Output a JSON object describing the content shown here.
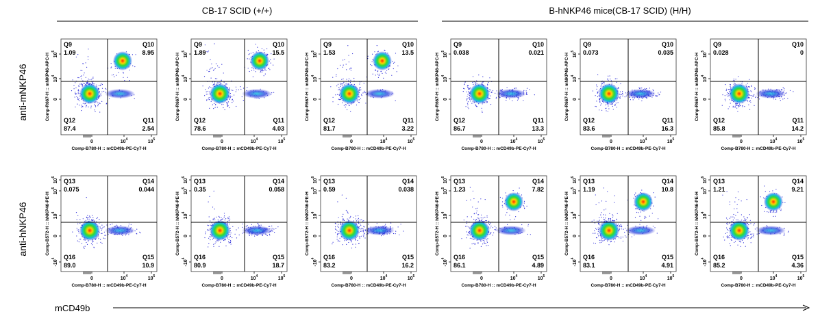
{
  "group_titles": [
    "CB-17 SCID (+/+)",
    "B-hNKP46 mice(CB-17 SCID) (H/H)"
  ],
  "row_labels": [
    "anti-mNKP46",
    "anti-hNKP46"
  ],
  "bottom_axis_label": "mCD49b",
  "chart_data": {
    "type": "scatter",
    "description_kind": "flow-cytometry quadrant plots",
    "x_axis": {
      "label": "Comp-B780-H :: mCD49b-PE-Cy7-H",
      "ticks": [
        "0",
        "10^4",
        "10^5"
      ],
      "scale": "biexponential"
    },
    "rows": [
      {
        "row_label": "anti-mNKP46",
        "y_axis_label": "Comp-R667-H :: mNKP46-APC-H",
        "y_ticks": [
          "0",
          "10^4",
          "10^5"
        ],
        "quadrant_names": [
          "Q9",
          "Q10",
          "Q11",
          "Q12"
        ],
        "panels": [
          {
            "group": "CB-17 SCID (+/+)",
            "Q9": "1.09",
            "Q10": "8.95",
            "Q11": "2.54",
            "Q12": "87.4"
          },
          {
            "group": "CB-17 SCID (+/+)",
            "Q9": "1.89",
            "Q10": "15.5",
            "Q11": "4.03",
            "Q12": "78.6"
          },
          {
            "group": "CB-17 SCID (+/+)",
            "Q9": "1.53",
            "Q10": "13.5",
            "Q11": "3.22",
            "Q12": "81.7"
          },
          {
            "group": "B-hNKP46 mice(CB-17 SCID) (H/H)",
            "Q9": "0.038",
            "Q10": "0.021",
            "Q11": "13.3",
            "Q12": "86.7"
          },
          {
            "group": "B-hNKP46 mice(CB-17 SCID) (H/H)",
            "Q9": "0.073",
            "Q10": "0.035",
            "Q11": "16.3",
            "Q12": "83.6"
          },
          {
            "group": "B-hNKP46 mice(CB-17 SCID) (H/H)",
            "Q9": "0.028",
            "Q10": "0",
            "Q11": "14.2",
            "Q12": "85.8"
          }
        ]
      },
      {
        "row_label": "anti-hNKP46",
        "y_axis_label": "Comp-B572-H :: hNKP46-PE-H",
        "y_ticks": [
          "-10^4",
          "0",
          "10^4",
          "10^5",
          "10^6"
        ],
        "quadrant_names": [
          "Q13",
          "Q14",
          "Q15",
          "Q16"
        ],
        "panels": [
          {
            "group": "CB-17 SCID (+/+)",
            "Q13": "0.075",
            "Q14": "0.044",
            "Q15": "10.9",
            "Q16": "89.0"
          },
          {
            "group": "CB-17 SCID (+/+)",
            "Q13": "0.35",
            "Q14": "0.058",
            "Q15": "18.7",
            "Q16": "80.9"
          },
          {
            "group": "CB-17 SCID (+/+)",
            "Q13": "0.59",
            "Q14": "0.038",
            "Q15": "16.2",
            "Q16": "83.2"
          },
          {
            "group": "B-hNKP46 mice(CB-17 SCID) (H/H)",
            "Q13": "1.23",
            "Q14": "7.82",
            "Q15": "4.89",
            "Q16": "86.1"
          },
          {
            "group": "B-hNKP46 mice(CB-17 SCID) (H/H)",
            "Q13": "1.19",
            "Q14": "10.8",
            "Q15": "4.91",
            "Q16": "83.1"
          },
          {
            "group": "B-hNKP46 mice(CB-17 SCID) (H/H)",
            "Q13": "1.21",
            "Q14": "9.21",
            "Q15": "4.36",
            "Q16": "85.2"
          }
        ]
      }
    ]
  }
}
